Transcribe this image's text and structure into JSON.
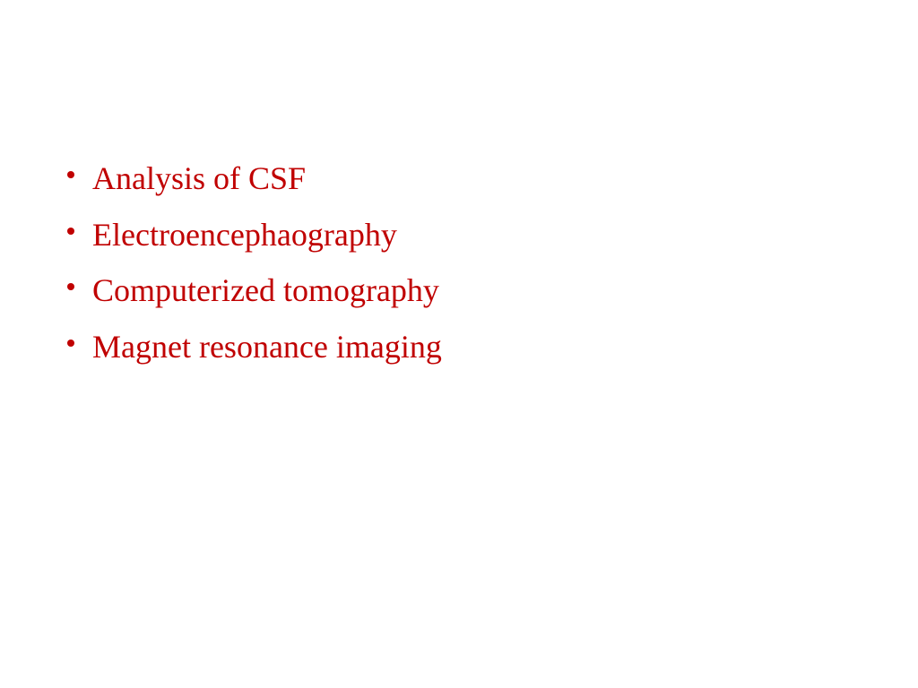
{
  "slide": {
    "background_color": "#ffffff",
    "text_color": "#c00000",
    "bullet_color": "#c00000",
    "font_family": "Comic Sans MS",
    "font_size_pt": 27,
    "items": [
      "Analysis of CSF",
      "Electroencephaography",
      "Computerized  tomography",
      "Magnet resonance imaging"
    ]
  }
}
